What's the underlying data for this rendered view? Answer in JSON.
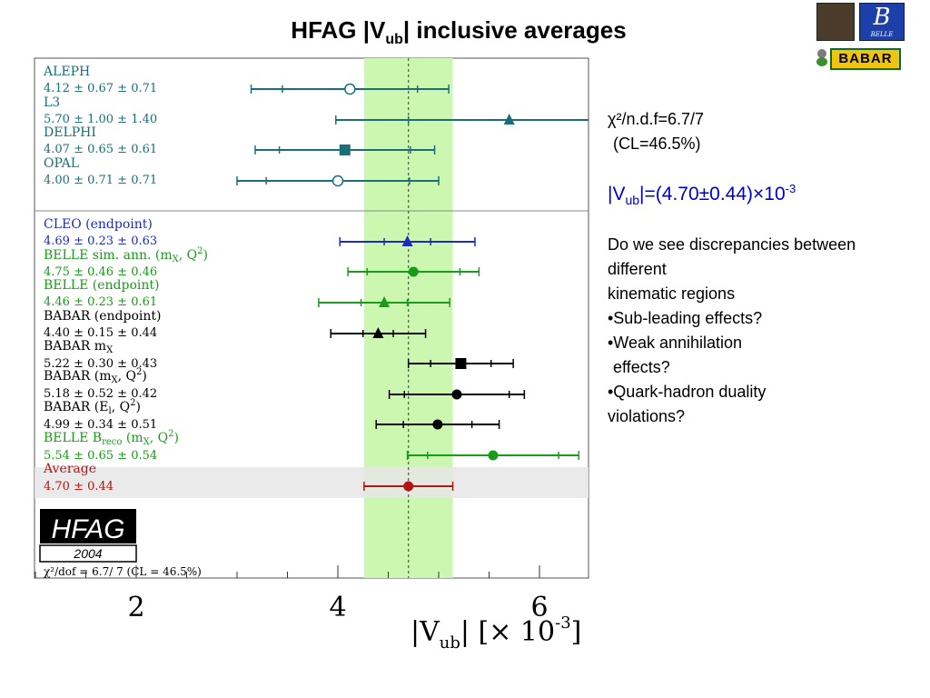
{
  "title": {
    "main": "HFAG |V",
    "sub": "ub",
    "rest": "| inclusive averages"
  },
  "logos": {
    "belle": "B",
    "belle_small": "BELLE",
    "babar": "BABAR"
  },
  "side": {
    "chi_symbol": "χ",
    "chi_text": "²/n.d.f=6.7/7",
    "cl_text": "(CL=46.5%)",
    "vub_pre": "|V",
    "vub_sub": "ub",
    "vub_mid": "|=(4.70±0.44)×10",
    "vub_sup": "-3",
    "lines": [
      "Do we see discrepancies between",
      "different",
      "kinematic regions",
      "•Sub-leading effects?",
      "•Weak annihilation",
      " effects?",
      "•Quark-hadron duality",
      "violations?"
    ]
  },
  "colors": {
    "lep": "#1b6e78",
    "cleo": "#1c2bbf",
    "belle": "#1a9b1a",
    "babar": "#000000",
    "average": "#b01414",
    "band": "#ccf7b0",
    "avg_band": "#e6e6e6"
  },
  "hfag_box": {
    "label": "HFAG",
    "year": "2004",
    "chi_line": "χ²/dof = 6.7/ 7 (CL = 46.5%)"
  },
  "chart_data": {
    "type": "scatter",
    "title": "",
    "xlabel": "|V_ub|  [× 10⁻³]",
    "xlim": [
      1.0,
      6.5
    ],
    "xticks": [
      2,
      4,
      6
    ],
    "average_band": [
      4.26,
      5.14
    ],
    "average_line": 4.7,
    "series": [
      {
        "name": "ALEPH",
        "label": "ALEPH",
        "value_text": "4.12 ± 0.67 ± 0.71",
        "central": 4.12,
        "stat": 0.67,
        "total": 0.98,
        "marker": "open-circle",
        "color": "lep"
      },
      {
        "name": "L3",
        "label": "L3",
        "value_text": "5.70 ± 1.00 ± 1.40",
        "central": 5.7,
        "stat": 1.0,
        "total": 1.72,
        "marker": "triangle",
        "color": "lep"
      },
      {
        "name": "DELPHI",
        "label": "DELPHI",
        "value_text": "4.07 ± 0.65 ± 0.61",
        "central": 4.07,
        "stat": 0.65,
        "total": 0.89,
        "marker": "square",
        "color": "lep"
      },
      {
        "name": "OPAL",
        "label": "OPAL",
        "value_text": "4.00 ± 0.71 ± 0.71",
        "central": 4.0,
        "stat": 0.71,
        "total": 1.0,
        "marker": "open-circle",
        "color": "lep"
      },
      {
        "name": "CLEO (endpoint)",
        "label": "CLEO (endpoint)",
        "value_text": "4.69 ± 0.23 ± 0.63",
        "central": 4.69,
        "stat": 0.23,
        "total": 0.67,
        "marker": "triangle",
        "color": "cleo"
      },
      {
        "name": "BELLE sim. ann.",
        "label": "BELLE  sim. ann. (m",
        "label_sub": "X",
        "label_tail": ", Q",
        "label_sup": "2",
        "label_end": ")",
        "value_text": "4.75 ± 0.46 ± 0.46",
        "central": 4.75,
        "stat": 0.46,
        "total": 0.65,
        "marker": "circle",
        "color": "belle"
      },
      {
        "name": "BELLE (endpoint)",
        "label": "BELLE (endpoint)",
        "value_text": "4.46 ± 0.23 ± 0.61",
        "central": 4.46,
        "stat": 0.23,
        "total": 0.65,
        "marker": "triangle",
        "color": "belle"
      },
      {
        "name": "BABAR (endpoint)",
        "label": "BABAR (endpoint)",
        "value_text": "4.40 ± 0.15 ± 0.44",
        "central": 4.4,
        "stat": 0.15,
        "total": 0.47,
        "marker": "triangle",
        "color": "babar"
      },
      {
        "name": "BABAR mX",
        "label": "BABAR m",
        "label_sub": "X",
        "value_text": "5.22 ± 0.30 ± 0.43",
        "central": 5.22,
        "stat": 0.3,
        "total": 0.52,
        "marker": "square",
        "color": "babar"
      },
      {
        "name": "BABAR (mX, Q2)",
        "label": "BABAR (m",
        "label_sub": "X",
        "label_tail": ", Q",
        "label_sup": "2",
        "label_end": ")",
        "value_text": "5.18 ± 0.52 ± 0.42",
        "central": 5.18,
        "stat": 0.52,
        "total": 0.67,
        "marker": "circle",
        "color": "babar"
      },
      {
        "name": "BABAR (El, Q2)",
        "label": "BABAR (E",
        "label_sub": "l",
        "label_tail": ", Q",
        "label_sup": "2",
        "label_end": ")",
        "value_text": "4.99 ± 0.34 ± 0.51",
        "central": 4.99,
        "stat": 0.34,
        "total": 0.61,
        "marker": "circle",
        "color": "babar"
      },
      {
        "name": "BELLE Breco (mX, Q2)",
        "label": "BELLE  B",
        "label_sub": "reco",
        "label_tail": " (m",
        "label_sub2": "X",
        "label_tail2": ", Q",
        "label_sup": "2",
        "label_end": ")",
        "value_text": "5.54 ± 0.65 ± 0.54",
        "central": 5.54,
        "stat": 0.65,
        "total": 0.85,
        "marker": "circle",
        "color": "belle"
      },
      {
        "name": "Average",
        "label": "Average",
        "value_text": "4.70 ± 0.44",
        "central": 4.7,
        "stat": 0.44,
        "total": 0.44,
        "marker": "circle",
        "color": "average"
      }
    ]
  }
}
